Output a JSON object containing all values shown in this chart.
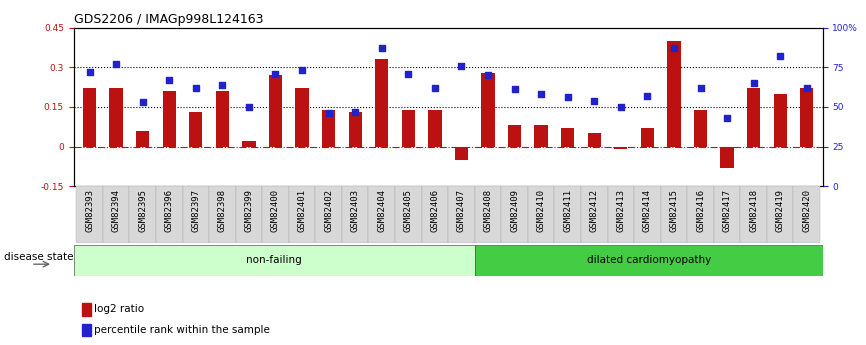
{
  "title": "GDS2206 / IMAGp998L124163",
  "categories": [
    "GSM82393",
    "GSM82394",
    "GSM82395",
    "GSM82396",
    "GSM82397",
    "GSM82398",
    "GSM82399",
    "GSM82400",
    "GSM82401",
    "GSM82402",
    "GSM82403",
    "GSM82404",
    "GSM82405",
    "GSM82406",
    "GSM82407",
    "GSM82408",
    "GSM82409",
    "GSM82410",
    "GSM82411",
    "GSM82412",
    "GSM82413",
    "GSM82414",
    "GSM82415",
    "GSM82416",
    "GSM82417",
    "GSM82418",
    "GSM82419",
    "GSM82420"
  ],
  "log2_ratio": [
    0.22,
    0.22,
    0.06,
    0.21,
    0.13,
    0.21,
    0.02,
    0.27,
    0.22,
    0.14,
    0.13,
    0.33,
    0.14,
    0.14,
    -0.05,
    0.28,
    0.08,
    0.08,
    0.07,
    0.05,
    -0.01,
    0.07,
    0.4,
    0.14,
    -0.08,
    0.22,
    0.2,
    0.22
  ],
  "percentile": [
    72,
    77,
    53,
    67,
    62,
    64,
    50,
    71,
    73,
    46,
    47,
    87,
    71,
    62,
    76,
    70,
    61,
    58,
    56,
    54,
    50,
    57,
    87,
    62,
    43,
    65,
    82,
    62
  ],
  "non_failing_count": 15,
  "ylim_left": [
    -0.15,
    0.45
  ],
  "ylim_right": [
    0,
    100
  ],
  "yticks_left": [
    -0.15,
    0.0,
    0.15,
    0.3,
    0.45
  ],
  "yticks_left_labels": [
    "-0.15",
    "0",
    "0.15",
    "0.3",
    "0.45"
  ],
  "yticks_right": [
    0,
    25,
    50,
    75,
    100
  ],
  "yticks_right_labels": [
    "0",
    "25",
    "50",
    "75",
    "100%"
  ],
  "hlines": [
    0.15,
    0.3
  ],
  "bar_color": "#BB1111",
  "dot_color": "#2222CC",
  "zero_line_color": "#BB1111",
  "non_failing_label": "non-failing",
  "dilated_label": "dilated cardiomyopathy",
  "disease_state_label": "disease state",
  "legend_bar_label": "log2 ratio",
  "legend_dot_label": "percentile rank within the sample",
  "title_fontsize": 9,
  "tick_fontsize": 6.5,
  "label_fontsize": 7.5,
  "nf_color": "#ccffcc",
  "dc_color": "#44cc44",
  "xtick_bg_color": "#d8d8d8",
  "bar_width": 0.5
}
